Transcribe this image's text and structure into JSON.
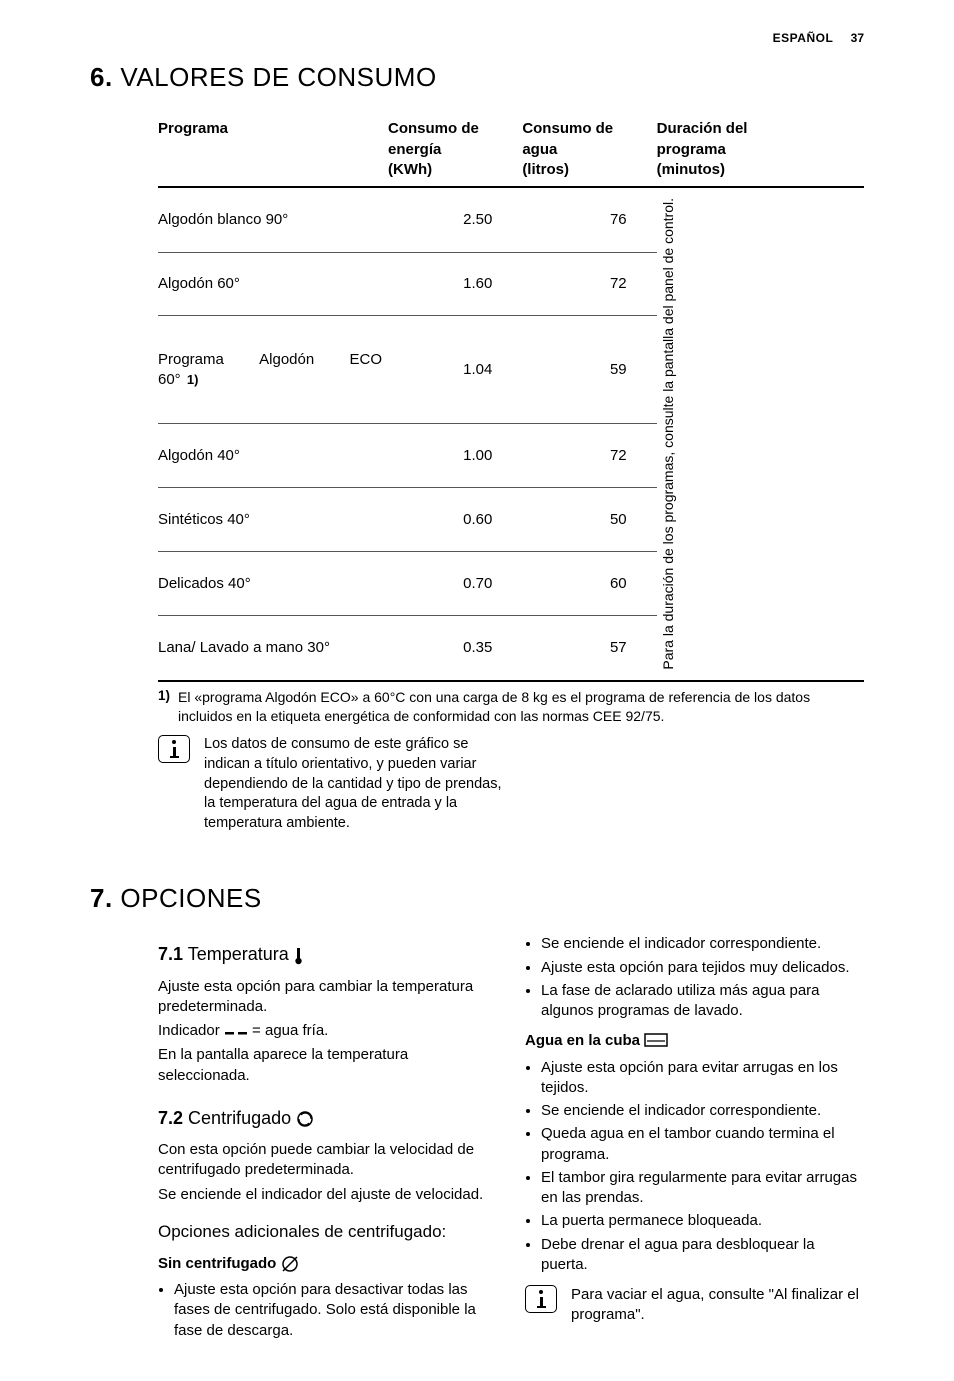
{
  "page": {
    "language": "ESPAÑOL",
    "number": "37"
  },
  "section6": {
    "number": "6.",
    "title": "VALORES DE CONSUMO",
    "table": {
      "headers": {
        "program": "Programa",
        "energy": [
          "Consumo de",
          "energía",
          "(KWh)"
        ],
        "water": [
          "Consumo de",
          "agua",
          "(litros)"
        ],
        "duration": [
          "Duración del",
          "programa",
          "(minutos)"
        ]
      },
      "duration_note": "Para la duración de los programas, consulte la pantalla del panel de control.",
      "rows": [
        {
          "program": "Algodón blanco 90°",
          "energy": "2.50",
          "water": "76"
        },
        {
          "program": "Algodón 60°",
          "energy": "1.60",
          "water": "72"
        },
        {
          "program": "Programa Algodón ECO 60°",
          "energy": "1.04",
          "water": "59",
          "sup": "1)"
        },
        {
          "program": "Algodón 40°",
          "energy": "1.00",
          "water": "72"
        },
        {
          "program": "Sintéticos 40°",
          "energy": "0.60",
          "water": "50"
        },
        {
          "program": "Delicados 40°",
          "energy": "0.70",
          "water": "60"
        },
        {
          "program": "Lana/ Lavado a mano 30°",
          "energy": "0.35",
          "water": "57"
        }
      ]
    },
    "footnote_num": "1)",
    "footnote": "El «programa Algodón ECO» a 60°C con una carga de 8 kg es el programa de referencia de los datos incluidos en la etiqueta energética de conformidad con las normas CEE 92/75.",
    "info": "Los datos de consumo de este gráfico se indican a título orientativo, y pueden variar dependiendo de la cantidad y tipo de prendas, la temperatura del agua de entrada y la temperatura ambiente."
  },
  "section7": {
    "number": "7.",
    "title": "OPCIONES",
    "s71": {
      "num": "7.1",
      "title": "Temperatura",
      "p1": "Ajuste esta opción para cambiar la temperatura predeterminada.",
      "p2a": "Indicador ",
      "p2b": " = agua fría.",
      "p3": "En la pantalla aparece la temperatura seleccionada."
    },
    "s72": {
      "num": "7.2",
      "title": "Centrifugado",
      "p1": "Con esta opción puede cambiar la velocidad de centrifugado predeterminada.",
      "p2": "Se enciende el indicador del ajuste de velocidad.",
      "h3": "Opciones adicionales de centrifugado:",
      "h4a": "Sin centrifugado",
      "bul_a": [
        "Ajuste esta opción para desactivar todas las fases de centrifugado. Solo está disponible la fase de descarga.",
        "Se enciende el indicador correspondiente.",
        "Ajuste esta opción para tejidos muy delicados.",
        "La fase de aclarado utiliza más agua para algunos programas de lavado."
      ],
      "h4b": "Agua en la cuba",
      "bul_b": [
        "Ajuste esta opción para evitar arrugas en los tejidos.",
        "Se enciende el indicador correspondiente.",
        "Queda agua en el tambor cuando termina el programa.",
        "El tambor gira regularmente para evitar arrugas en las prendas.",
        "La puerta permanece bloqueada.",
        "Debe drenar el agua para desbloquear la puerta."
      ],
      "info": "Para vaciar el agua, consulte \"Al finalizar el programa\"."
    }
  }
}
